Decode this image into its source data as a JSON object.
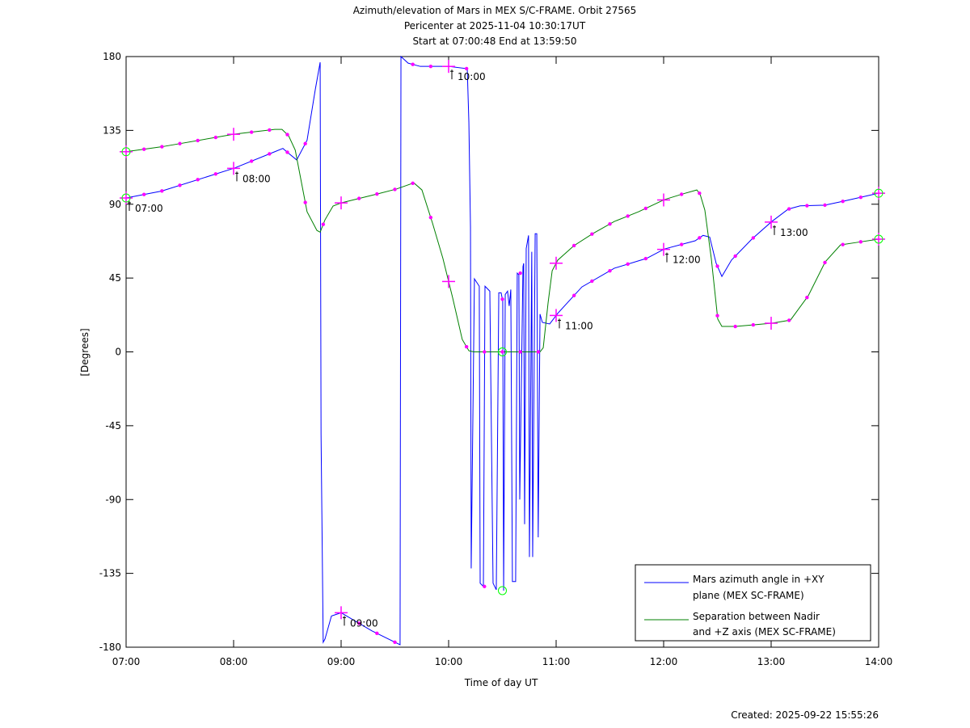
{
  "chart_data": {
    "type": "line",
    "title_lines": [
      "Azimuth/elevation of Mars in MEX S/C-FRAME.  Orbit 27565",
      "Pericenter at 2025-11-04 10:30:17UT",
      "Start at 07:00:48 End at 13:59:50"
    ],
    "xlabel": "Time of day UT",
    "ylabel": "[Degrees]",
    "x_unit": "minutes since 07:00",
    "xlim": [
      0,
      420
    ],
    "ylim": [
      -180,
      180
    ],
    "x_ticks": [
      0,
      60,
      120,
      180,
      240,
      300,
      360,
      420
    ],
    "x_tick_labels": [
      "07:00",
      "08:00",
      "09:00",
      "10:00",
      "11:00",
      "12:00",
      "13:00",
      "14:00"
    ],
    "y_ticks": [
      180,
      135,
      90,
      45,
      0,
      -45,
      -90,
      -135,
      -180
    ],
    "y_tick_labels": [
      "180",
      "135",
      "90",
      "45",
      "0",
      "-45",
      "-90",
      "-135",
      "-180"
    ],
    "legend_position": "bottom-right",
    "pericenter_minute": 210,
    "series": [
      {
        "name": "Mars azimuth angle in +XY plane (MEX SC-FRAME)",
        "legend_lines": [
          "Mars azimuth angle in +XY",
          "plane (MEX SC-FRAME)"
        ],
        "color": "#0000ff",
        "points": [
          [
            0,
            93.8
          ],
          [
            19.8,
            98
          ],
          [
            60.4,
            112
          ],
          [
            83,
            122
          ],
          [
            87.5,
            124
          ],
          [
            90.7,
            121
          ],
          [
            95.2,
            117
          ],
          [
            101,
            129
          ],
          [
            105.6,
            160
          ],
          [
            108.3,
            176.5
          ],
          [
            108.8,
            -50
          ],
          [
            110,
            -177
          ],
          [
            111,
            -175
          ],
          [
            114.6,
            -161
          ],
          [
            120,
            -159
          ],
          [
            137.1,
            -170
          ],
          [
            152.9,
            -178.5
          ],
          [
            153.4,
            180
          ],
          [
            157.4,
            176
          ],
          [
            164.2,
            174
          ],
          [
            180,
            174
          ],
          [
            190.4,
            172.6
          ],
          [
            191.3,
            140
          ],
          [
            192.2,
            76
          ],
          [
            192.6,
            -132
          ],
          [
            194.4,
            44.5
          ],
          [
            197.1,
            40
          ],
          [
            197.6,
            -141
          ],
          [
            199.4,
            -143
          ],
          [
            200.3,
            40
          ],
          [
            203,
            37
          ],
          [
            204.8,
            -141
          ],
          [
            206.6,
            -145
          ],
          [
            208,
            36
          ],
          [
            209.3,
            36
          ],
          [
            210.2,
            31
          ],
          [
            210.7,
            -145.5
          ],
          [
            211.6,
            35
          ],
          [
            212.9,
            37
          ],
          [
            213.8,
            28
          ],
          [
            214.7,
            38
          ],
          [
            215.6,
            -140
          ],
          [
            217.4,
            -140
          ],
          [
            218.3,
            48
          ],
          [
            219.2,
            47
          ],
          [
            219.7,
            -90
          ],
          [
            221.5,
            52
          ],
          [
            221.9,
            54
          ],
          [
            222.4,
            -105
          ],
          [
            223.3,
            63
          ],
          [
            224.6,
            71
          ],
          [
            225.1,
            -125
          ],
          [
            226.4,
            61
          ],
          [
            226.9,
            -125
          ],
          [
            228.3,
            72
          ],
          [
            229.2,
            72
          ],
          [
            230,
            -113
          ],
          [
            231,
            23
          ],
          [
            232.3,
            18
          ],
          [
            236.4,
            17
          ],
          [
            240.9,
            23.5
          ],
          [
            254.4,
            39.6
          ],
          [
            272.5,
            51
          ],
          [
            290.5,
            57
          ],
          [
            300.4,
            62.7
          ],
          [
            317.6,
            67.7
          ],
          [
            322,
            71
          ],
          [
            325.7,
            70
          ],
          [
            329.3,
            54
          ],
          [
            332.5,
            46
          ],
          [
            337.9,
            56
          ],
          [
            349.2,
            68.7
          ],
          [
            360.4,
            79.5
          ],
          [
            369.5,
            87
          ],
          [
            376.2,
            89
          ],
          [
            389.8,
            89.4
          ],
          [
            400.1,
            91.8
          ],
          [
            420,
            96.7
          ]
        ]
      },
      {
        "name": "Separation between Nadir and +Z axis (MEX SC-FRAME)",
        "legend_lines": [
          "Separation between Nadir",
          "and +Z axis (MEX SC-FRAME)"
        ],
        "color": "#008000",
        "points": [
          [
            0,
            122
          ],
          [
            19.8,
            125
          ],
          [
            60.4,
            132.7
          ],
          [
            83,
            135.6
          ],
          [
            87,
            135.6
          ],
          [
            90.7,
            131.7
          ],
          [
            94.4,
            123
          ],
          [
            101,
            85.4
          ],
          [
            106.5,
            74
          ],
          [
            108.3,
            73
          ],
          [
            111,
            80.5
          ],
          [
            115.5,
            88.9
          ],
          [
            120,
            90.8
          ],
          [
            140.3,
            96.3
          ],
          [
            150.7,
            99.2
          ],
          [
            160.6,
            103
          ],
          [
            165.1,
            98.7
          ],
          [
            171,
            78.5
          ],
          [
            176.8,
            57
          ],
          [
            182.2,
            33.2
          ],
          [
            187.6,
            7.6
          ],
          [
            191.3,
            0.7
          ],
          [
            194,
            0
          ],
          [
            231,
            0
          ],
          [
            232.8,
            2.5
          ],
          [
            235.5,
            29.8
          ],
          [
            237.8,
            49.5
          ],
          [
            240.9,
            55.9
          ],
          [
            249.9,
            64.7
          ],
          [
            260.3,
            72
          ],
          [
            272.5,
            79.5
          ],
          [
            286,
            85.4
          ],
          [
            300.4,
            92.8
          ],
          [
            310.8,
            96.3
          ],
          [
            318.5,
            98.7
          ],
          [
            320.3,
            96.3
          ],
          [
            323,
            86.4
          ],
          [
            326.6,
            56.9
          ],
          [
            330.2,
            20
          ],
          [
            332.5,
            15.5
          ],
          [
            340.1,
            15.5
          ],
          [
            350.5,
            16.5
          ],
          [
            360.4,
            17.5
          ],
          [
            370.8,
            19.4
          ],
          [
            380.7,
            34.2
          ],
          [
            390.2,
            54.9
          ],
          [
            398.7,
            65.2
          ],
          [
            407.7,
            66.7
          ],
          [
            420,
            68.7
          ]
        ]
      }
    ],
    "hour_annotations": [
      {
        "minute": 0,
        "label": "07:00"
      },
      {
        "minute": 60,
        "label": "08:00"
      },
      {
        "minute": 120,
        "label": "09:00"
      },
      {
        "minute": 180,
        "label": "10:00"
      },
      {
        "minute": 240,
        "label": "11:00"
      },
      {
        "minute": 300,
        "label": "12:00"
      },
      {
        "minute": 360,
        "label": "13:00"
      }
    ],
    "marker_color": "#ff00ff",
    "circle_color": "#00ff00"
  },
  "footer": {
    "created": "Created: 2025-09-22 15:55:26"
  }
}
